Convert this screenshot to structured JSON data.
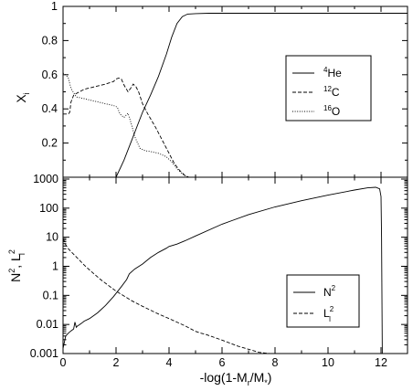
{
  "chart_data": [
    {
      "type": "line",
      "panel": "top",
      "ylabel": "X",
      "ylabel_sub": "i",
      "xlim": [
        0,
        13
      ],
      "ylim": [
        0,
        1
      ],
      "yticks": [
        0,
        0.2,
        0.4,
        0.6,
        0.8,
        1
      ],
      "ytick_labels": [
        "",
        "0.2",
        "0.4",
        "0.6",
        "0.8",
        "1"
      ],
      "legend_position": "center-right",
      "series": [
        {
          "name_sup": "4",
          "name": "He",
          "style": "solid",
          "x": [
            0,
            1.5,
            2.0,
            2.3,
            2.6,
            2.8,
            3.0,
            3.3,
            3.6,
            3.9,
            4.1,
            4.3,
            4.5,
            4.7,
            5.0,
            5.5,
            12.0,
            13.0
          ],
          "y": [
            0,
            0,
            0.0,
            0.1,
            0.22,
            0.3,
            0.38,
            0.48,
            0.59,
            0.72,
            0.82,
            0.9,
            0.94,
            0.955,
            0.958,
            0.96,
            0.96,
            0.96
          ]
        },
        {
          "name_sup": "12",
          "name": "C",
          "style": "dashed",
          "x": [
            0,
            0.1,
            0.2,
            0.25,
            0.3,
            0.4,
            0.5,
            0.8,
            1.2,
            1.6,
            1.9,
            2.0,
            2.1,
            2.2,
            2.3,
            2.45,
            2.55,
            2.65,
            2.75,
            2.85,
            3.0,
            3.2,
            3.5,
            3.8,
            4.0,
            4.2,
            4.4,
            4.6,
            4.75
          ],
          "y": [
            0.37,
            0.37,
            0.37,
            0.38,
            0.44,
            0.48,
            0.49,
            0.515,
            0.53,
            0.545,
            0.56,
            0.575,
            0.58,
            0.575,
            0.54,
            0.5,
            0.52,
            0.545,
            0.53,
            0.5,
            0.43,
            0.37,
            0.29,
            0.2,
            0.14,
            0.08,
            0.04,
            0.01,
            0.0
          ]
        },
        {
          "name_sup": "16",
          "name": "O",
          "style": "dotted",
          "x": [
            0,
            0.1,
            0.2,
            0.3,
            0.5,
            0.8,
            1.2,
            1.6,
            1.9,
            2.05,
            2.15,
            2.3,
            2.45,
            2.6,
            2.7,
            2.9,
            3.1,
            3.3,
            3.6,
            3.9,
            4.1,
            4.3,
            4.5,
            4.7
          ],
          "y": [
            0.61,
            0.6,
            0.58,
            0.52,
            0.47,
            0.46,
            0.445,
            0.43,
            0.42,
            0.41,
            0.37,
            0.35,
            0.375,
            0.3,
            0.24,
            0.17,
            0.155,
            0.15,
            0.14,
            0.12,
            0.09,
            0.05,
            0.02,
            0.0
          ]
        }
      ]
    },
    {
      "type": "line",
      "panel": "bottom",
      "ylabel": "N",
      "ylabel_sup": "2",
      "ylabel_comma": ", L",
      "ylabel_sup2": "2",
      "ylabel_sub2": "l",
      "xlabel": "-log(1-M",
      "xlabel_sub": "r",
      "xlabel_mid": "/M",
      "xlabel_sub2": "*",
      "xlabel_end": ")",
      "xlim": [
        0,
        13
      ],
      "ylim": [
        0.001,
        1000
      ],
      "yscale": "log",
      "yticks": [
        0.001,
        0.01,
        0.1,
        1,
        10,
        100,
        1000
      ],
      "ytick_labels": [
        "0.001",
        "0.01",
        "0.1",
        "1",
        "10",
        "100",
        "1000"
      ],
      "xticks": [
        0,
        2,
        4,
        6,
        8,
        10,
        12
      ],
      "xtick_labels": [
        "0",
        "2",
        "4",
        "6",
        "8",
        "10",
        "12"
      ],
      "legend_position": "bottom-right",
      "series": [
        {
          "name": "N",
          "name_sup": "2",
          "style": "solid",
          "x": [
            0.0,
            0.05,
            0.1,
            0.2,
            0.3,
            0.4,
            0.45,
            0.5,
            0.55,
            0.6,
            0.7,
            0.8,
            1.0,
            1.3,
            1.6,
            1.9,
            2.2,
            2.4,
            2.5,
            2.7,
            3.0,
            3.3,
            3.6,
            3.9,
            4.0,
            4.3,
            4.6,
            5.0,
            6.0,
            7.0,
            8.0,
            9.0,
            10.0,
            11.0,
            11.5,
            11.8,
            11.95,
            12.0,
            12.02,
            12.05
          ],
          "y": [
            0.0015,
            0.0025,
            0.004,
            0.005,
            0.006,
            0.007,
            0.012,
            0.008,
            0.009,
            0.0095,
            0.011,
            0.013,
            0.016,
            0.025,
            0.045,
            0.09,
            0.2,
            0.35,
            0.55,
            0.8,
            1.2,
            2.0,
            3.0,
            4.2,
            4.8,
            5.8,
            7.5,
            11,
            28,
            60,
            110,
            180,
            280,
            420,
            500,
            520,
            460,
            250,
            10,
            0.001
          ]
        },
        {
          "name": "L",
          "name_sup": "2",
          "name_sub": "l",
          "style": "dashed",
          "x": [
            0.0,
            0.1,
            0.2,
            0.4,
            0.6,
            0.8,
            1.0,
            1.4,
            2.0,
            2.6,
            3.0,
            3.6,
            4.0,
            4.6,
            5.0,
            5.2,
            5.4,
            6.0,
            6.6,
            7.0,
            7.4,
            7.8
          ],
          "y": [
            9,
            5.5,
            4.0,
            2.6,
            1.7,
            1.1,
            0.75,
            0.36,
            0.14,
            0.065,
            0.042,
            0.023,
            0.016,
            0.009,
            0.0058,
            0.005,
            0.0045,
            0.0029,
            0.0018,
            0.0014,
            0.0011,
            0.001
          ]
        }
      ]
    }
  ]
}
